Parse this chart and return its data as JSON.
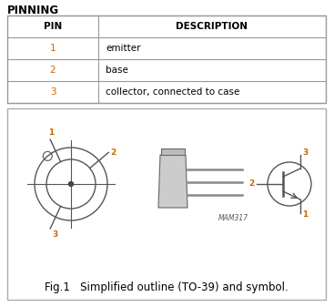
{
  "title": "PINNING",
  "table_headers": [
    "PIN",
    "DESCRIPTION"
  ],
  "table_rows": [
    [
      "1",
      "emitter"
    ],
    [
      "2",
      "base"
    ],
    [
      "3",
      "collector, connected to case"
    ]
  ],
  "fig_caption": "Fig.1   Simplified outline (TO-39) and symbol.",
  "mam_label": "MAM317",
  "bg_color": "#ffffff",
  "table_border_color": "#999999",
  "pin_color_num": "#cc6600",
  "title_fontsize": 8.5,
  "header_fontsize": 7.5,
  "cell_fontsize": 7.5,
  "caption_fontsize": 8.5,
  "mam_fontsize": 5.5,
  "pin_label_fontsize": 6.5
}
